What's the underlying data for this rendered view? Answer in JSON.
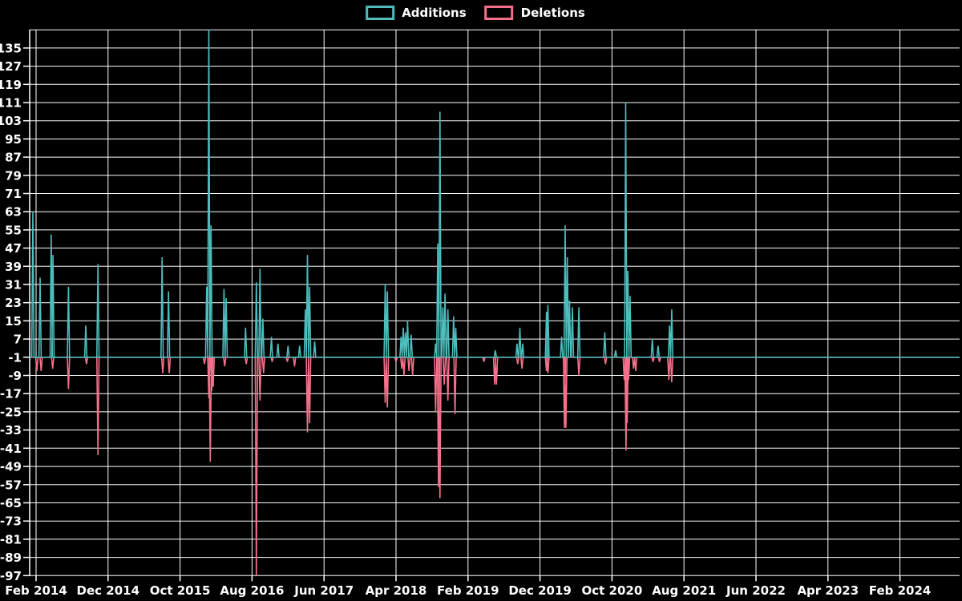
{
  "chart_data": {
    "type": "line",
    "title": "",
    "background_color": "#000000",
    "grid_color": "#ffffff",
    "text_color": "#ffffff",
    "baseline": -1,
    "x_unit": "months_since_feb_2014",
    "x_axis": {
      "ticks": [
        {
          "m": 0,
          "label": "Feb 2014"
        },
        {
          "m": 10,
          "label": "Dec 2014"
        },
        {
          "m": 20,
          "label": "Oct 2015"
        },
        {
          "m": 30,
          "label": "Aug 2016"
        },
        {
          "m": 40,
          "label": "Jun 2017"
        },
        {
          "m": 50,
          "label": "Apr 2018"
        },
        {
          "m": 60,
          "label": "Feb 2019"
        },
        {
          "m": 70,
          "label": "Dec 2019"
        },
        {
          "m": 80,
          "label": "Oct 2020"
        },
        {
          "m": 90,
          "label": "Aug 2021"
        },
        {
          "m": 100,
          "label": "Jun 2022"
        },
        {
          "m": 110,
          "label": "Apr 2023"
        },
        {
          "m": 120,
          "label": "Feb 2024"
        }
      ],
      "range_months": [
        -1,
        129.8
      ]
    },
    "y_axis": {
      "tick_values": [
        135,
        127,
        119,
        111,
        103,
        95,
        87,
        79,
        71,
        63,
        55,
        47,
        39,
        31,
        23,
        15,
        7,
        -1,
        -9,
        -17,
        -25,
        -33,
        -41,
        -49,
        -57,
        -65,
        -73,
        -81,
        -89,
        -97
      ],
      "grid_extra_values": [
        143
      ],
      "min": -99,
      "max": 143.5,
      "grid_step": 8
    },
    "legend_position": "top-center",
    "series": [
      {
        "name": "Additions",
        "color": "#4dbdbd",
        "events": [
          [
            -0.45,
            63
          ],
          [
            0.56,
            34
          ],
          [
            2.1,
            53
          ],
          [
            2.35,
            44
          ],
          [
            4.5,
            30
          ],
          [
            6.9,
            13
          ],
          [
            8.6,
            40
          ],
          [
            17.5,
            43
          ],
          [
            18.4,
            28
          ],
          [
            23.7,
            30
          ],
          [
            24.0,
            143
          ],
          [
            24.3,
            57
          ],
          [
            26.1,
            29
          ],
          [
            26.4,
            25
          ],
          [
            29.1,
            12
          ],
          [
            30.6,
            32
          ],
          [
            31.1,
            38
          ],
          [
            31.5,
            16
          ],
          [
            32.7,
            8
          ],
          [
            33.6,
            5
          ],
          [
            35.0,
            4
          ],
          [
            36.6,
            4
          ],
          [
            37.4,
            20
          ],
          [
            37.7,
            44
          ],
          [
            38.0,
            30
          ],
          [
            38.7,
            6
          ],
          [
            48.5,
            31
          ],
          [
            48.8,
            28
          ],
          [
            50.7,
            8
          ],
          [
            51.0,
            12
          ],
          [
            51.3,
            10
          ],
          [
            51.6,
            15
          ],
          [
            52.1,
            9
          ],
          [
            55.5,
            5
          ],
          [
            55.8,
            49
          ],
          [
            56.1,
            107
          ],
          [
            56.5,
            21
          ],
          [
            56.8,
            27
          ],
          [
            57.2,
            20
          ],
          [
            58.0,
            17
          ],
          [
            58.3,
            12
          ],
          [
            63.8,
            2
          ],
          [
            66.8,
            5
          ],
          [
            67.2,
            12
          ],
          [
            67.6,
            5
          ],
          [
            70.9,
            19
          ],
          [
            71.1,
            22
          ],
          [
            73.0,
            8
          ],
          [
            73.5,
            57
          ],
          [
            73.8,
            43
          ],
          [
            74.1,
            24
          ],
          [
            74.5,
            21
          ],
          [
            75.4,
            21
          ],
          [
            79.0,
            10
          ],
          [
            80.5,
            2
          ],
          [
            81.9,
            111
          ],
          [
            82.2,
            37
          ],
          [
            82.5,
            26
          ],
          [
            85.6,
            7
          ],
          [
            86.4,
            4
          ],
          [
            88.0,
            13
          ],
          [
            88.3,
            20
          ]
        ]
      },
      {
        "name": "Deletions",
        "color": "#f5708b",
        "events": [
          [
            0.1,
            -7
          ],
          [
            0.7,
            -7
          ],
          [
            2.3,
            -6
          ],
          [
            4.5,
            -15
          ],
          [
            7.0,
            -4
          ],
          [
            8.6,
            -44
          ],
          [
            17.6,
            -8
          ],
          [
            18.5,
            -8
          ],
          [
            23.4,
            -4
          ],
          [
            24.0,
            -19
          ],
          [
            24.2,
            -47
          ],
          [
            24.4,
            -16
          ],
          [
            24.6,
            -14
          ],
          [
            26.2,
            -5
          ],
          [
            29.2,
            -4
          ],
          [
            30.6,
            -97
          ],
          [
            31.1,
            -20
          ],
          [
            31.6,
            -8
          ],
          [
            32.8,
            -3
          ],
          [
            34.9,
            -3
          ],
          [
            35.9,
            -5
          ],
          [
            37.7,
            -34
          ],
          [
            38.0,
            -30
          ],
          [
            48.5,
            -21
          ],
          [
            48.8,
            -23
          ],
          [
            50.0,
            -3
          ],
          [
            50.8,
            -6
          ],
          [
            51.1,
            -9
          ],
          [
            51.8,
            -7
          ],
          [
            52.3,
            -9
          ],
          [
            55.5,
            -25
          ],
          [
            55.9,
            -58
          ],
          [
            56.1,
            -63
          ],
          [
            56.7,
            -13
          ],
          [
            57.2,
            -20
          ],
          [
            58.2,
            -26
          ],
          [
            62.2,
            -3
          ],
          [
            63.7,
            -13
          ],
          [
            63.95,
            -13
          ],
          [
            66.9,
            -4
          ],
          [
            67.5,
            -6
          ],
          [
            70.9,
            -7
          ],
          [
            71.1,
            -8
          ],
          [
            73.4,
            -32
          ],
          [
            73.6,
            -32
          ],
          [
            75.4,
            -9
          ],
          [
            79.1,
            -4
          ],
          [
            81.7,
            -11
          ],
          [
            81.95,
            -42
          ],
          [
            82.1,
            -30
          ],
          [
            82.3,
            -11
          ],
          [
            83.0,
            -6
          ],
          [
            83.3,
            -7
          ],
          [
            85.7,
            -3
          ],
          [
            86.6,
            -3
          ],
          [
            87.9,
            -11
          ],
          [
            88.3,
            -12
          ]
        ]
      }
    ]
  }
}
